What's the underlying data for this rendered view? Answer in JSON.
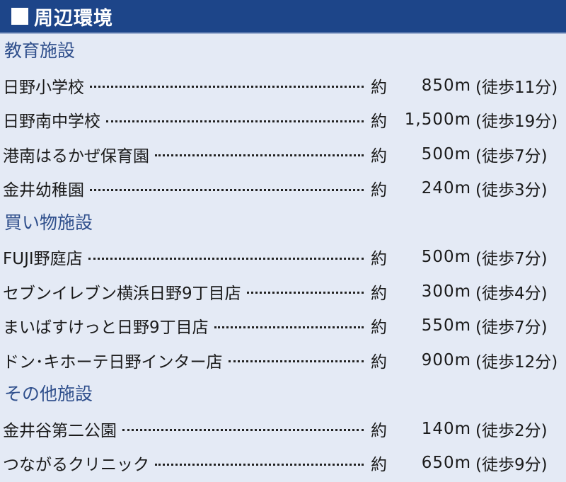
{
  "header": {
    "title": "周辺環境"
  },
  "colors": {
    "header_bg": "#1d4589",
    "page_bg": "#e4eaf5",
    "category_text": "#2f4f8c"
  },
  "approx_label": "約",
  "sections": [
    {
      "category": "教育施設",
      "items": [
        {
          "name": "日野小学校",
          "distance": "850m",
          "walk": "(徒歩11分)"
        },
        {
          "name": "日野南中学校",
          "distance": "1,500m",
          "walk": "(徒歩19分)"
        },
        {
          "name": "港南はるかぜ保育園",
          "distance": "500m",
          "walk": "(徒歩7分)"
        },
        {
          "name": "金井幼稚園",
          "distance": "240m",
          "walk": "(徒歩3分)"
        }
      ]
    },
    {
      "category": "買い物施設",
      "items": [
        {
          "name": "FUJI野庭店",
          "distance": "500m",
          "walk": "(徒歩7分)"
        },
        {
          "name": "セブンイレブン横浜日野9丁目店",
          "distance": "300m",
          "walk": "(徒歩4分)"
        },
        {
          "name": "まいばすけっと日野9丁目店",
          "distance": "550m",
          "walk": "(徒歩7分)"
        },
        {
          "name": "ドン･キホーテ日野インター店",
          "distance": "900m",
          "walk": "(徒歩12分)"
        }
      ]
    },
    {
      "category": "その他施設",
      "items": [
        {
          "name": "金井谷第二公園",
          "distance": "140m",
          "walk": "(徒歩2分)"
        },
        {
          "name": "つながるクリニック",
          "distance": "650m",
          "walk": "(徒歩9分)"
        }
      ]
    }
  ]
}
